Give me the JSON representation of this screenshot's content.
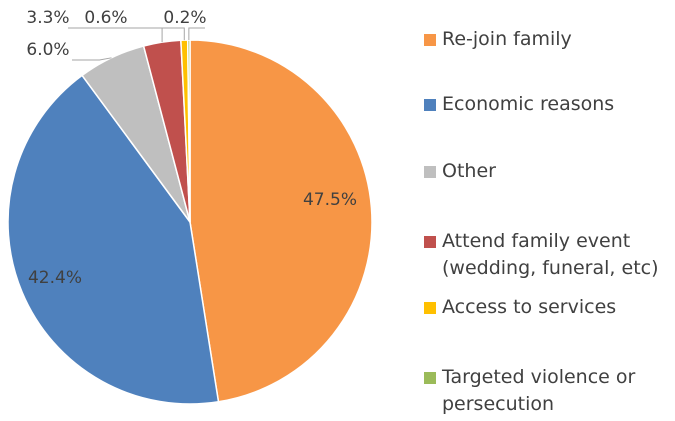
{
  "chart_data": {
    "type": "pie",
    "categories": [
      "Re-join family",
      "Economic reasons",
      "Other",
      "Attend family event (wedding, funeral, etc)",
      "Access to services",
      "Targeted violence or persecution"
    ],
    "values": [
      47.5,
      42.4,
      6.0,
      3.3,
      0.6,
      0.2
    ],
    "value_labels": [
      "47.5%",
      "42.4%",
      "6.0%",
      "3.3%",
      "0.6%",
      "0.2%"
    ],
    "colors": [
      "#f79646",
      "#4f81bd",
      "#bfbfbf",
      "#c0504d",
      "#ffc000",
      "#9bbb59"
    ]
  }
}
